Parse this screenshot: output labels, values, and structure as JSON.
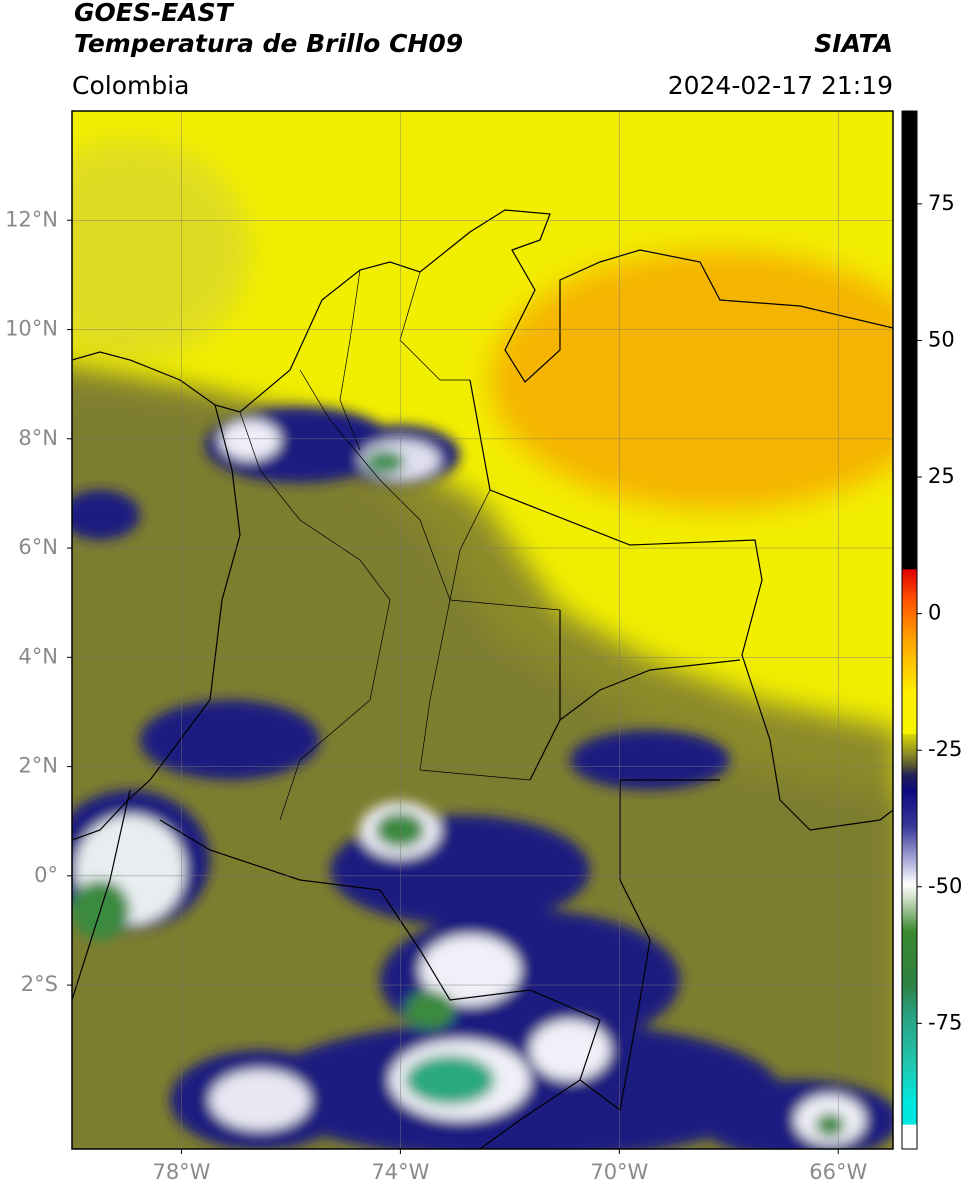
{
  "header": {
    "satellite": "GOES-EAST",
    "product": "Temperatura de Brillo CH09",
    "source": "SIATA",
    "region": "Colombia",
    "timestamp": "2024-02-17 21:19"
  },
  "map": {
    "lonlim": [
      -80,
      -65
    ],
    "latlim": [
      -5,
      14
    ],
    "xticks": [
      {
        "value": -78,
        "label": "78°W"
      },
      {
        "value": -74,
        "label": "74°W"
      },
      {
        "value": -70,
        "label": "70°W"
      },
      {
        "value": -66,
        "label": "66°W"
      }
    ],
    "yticks": [
      {
        "value": 12,
        "label": "12°N"
      },
      {
        "value": 10,
        "label": "10°N"
      },
      {
        "value": 8,
        "label": "8°N"
      },
      {
        "value": 6,
        "label": "6°N"
      },
      {
        "value": 4,
        "label": "4°N"
      },
      {
        "value": 2,
        "label": "2°N"
      },
      {
        "value": 0,
        "label": "0°"
      },
      {
        "value": -2,
        "label": "2°S"
      }
    ],
    "grid": true
  },
  "colorbar": {
    "lim": [
      -98,
      92
    ],
    "ticks": [
      75,
      50,
      25,
      0,
      -25,
      -50,
      -75
    ]
  }
}
